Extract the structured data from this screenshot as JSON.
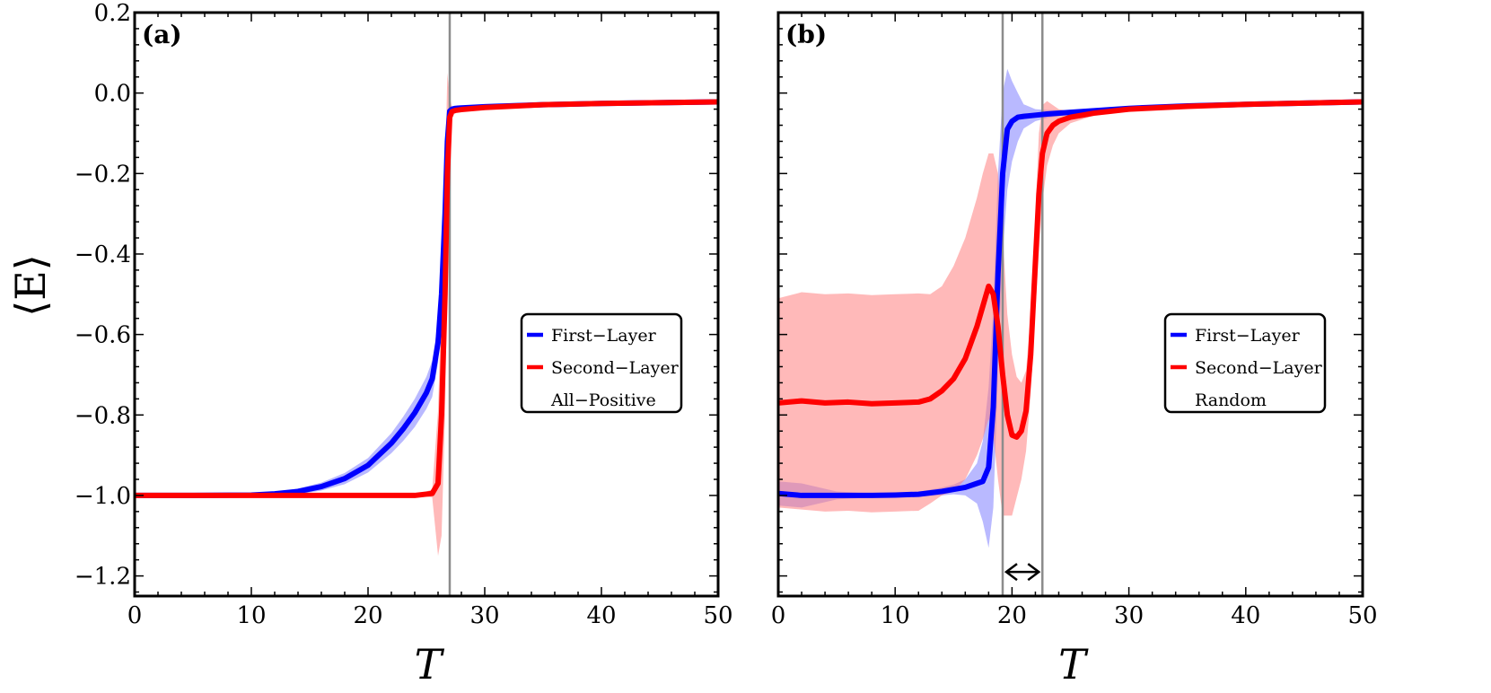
{
  "chart_data": [
    {
      "type": "line",
      "panel_label": "(a)",
      "xlabel": "T",
      "ylabel": "⟨E⟩",
      "xlim": [
        0,
        50
      ],
      "ylim": [
        -1.25,
        0.2
      ],
      "x_ticks": [
        0,
        10,
        20,
        30,
        40,
        50
      ],
      "y_ticks": [
        0.2,
        0.0,
        -0.2,
        -0.4,
        -0.6,
        -0.8,
        -1.0,
        -1.2
      ],
      "y_tick_labels": [
        "0.2",
        "0.0",
        "−0.2",
        "−0.4",
        "−0.6",
        "−0.8",
        "−1.0",
        "−1.2"
      ],
      "vlines": [
        27.0
      ],
      "legend": {
        "position": "right",
        "entries": [
          "First−Layer",
          "Second−Layer",
          "All−Positive"
        ]
      },
      "series": [
        {
          "name": "First−Layer",
          "color": "#0000ff",
          "band_color": "#8080ff",
          "x": [
            0,
            5,
            10,
            12,
            14,
            16,
            18,
            20,
            22,
            23,
            24,
            25,
            25.5,
            26,
            26.3,
            26.6,
            26.8,
            27.0,
            27.2,
            27.5,
            28,
            30,
            35,
            40,
            45,
            50
          ],
          "y": [
            -1.0,
            -1.0,
            -0.999,
            -0.996,
            -0.99,
            -0.978,
            -0.958,
            -0.925,
            -0.87,
            -0.835,
            -0.795,
            -0.745,
            -0.71,
            -0.62,
            -0.5,
            -0.3,
            -0.12,
            -0.045,
            -0.04,
            -0.038,
            -0.037,
            -0.034,
            -0.029,
            -0.026,
            -0.024,
            -0.022
          ],
          "err": [
            0,
            0,
            0.002,
            0.004,
            0.007,
            0.01,
            0.014,
            0.018,
            0.025,
            0.03,
            0.035,
            0.04,
            0.045,
            0.05,
            0.05,
            0.05,
            0.03,
            0.01,
            0.005,
            0.003,
            0.002,
            0.001,
            0.001,
            0.001,
            0.001,
            0.001
          ]
        },
        {
          "name": "Second−Layer",
          "color": "#ff0000",
          "band_color": "#ff8080",
          "x": [
            0,
            5,
            10,
            15,
            20,
            24,
            25.5,
            26.0,
            26.3,
            26.6,
            26.8,
            27.0,
            27.2,
            27.5,
            28,
            30,
            35,
            40,
            45,
            50
          ],
          "y": [
            -1.0,
            -1.0,
            -1.0,
            -1.0,
            -1.0,
            -1.0,
            -0.995,
            -0.97,
            -0.8,
            -0.5,
            -0.2,
            -0.06,
            -0.046,
            -0.043,
            -0.041,
            -0.036,
            -0.029,
            -0.026,
            -0.024,
            -0.022
          ],
          "err": [
            0,
            0,
            0,
            0,
            0,
            0,
            0.01,
            0.18,
            0.3,
            0.3,
            0.25,
            0.05,
            0.01,
            0.005,
            0.003,
            0.002,
            0.001,
            0.001,
            0.001,
            0.001
          ]
        }
      ]
    },
    {
      "type": "line",
      "panel_label": "(b)",
      "xlabel": "T",
      "xlim": [
        0,
        50
      ],
      "ylim": [
        -1.25,
        0.2
      ],
      "x_ticks": [
        0,
        10,
        20,
        30,
        40,
        50
      ],
      "vlines": [
        19.2,
        22.6
      ],
      "arrow": {
        "from": 19.2,
        "to": 22.6,
        "y": -1.19
      },
      "legend": {
        "position": "right",
        "entries": [
          "First−Layer",
          "Second−Layer",
          "Random"
        ]
      },
      "series": [
        {
          "name": "First−Layer",
          "color": "#0000ff",
          "band_color": "#8080ff",
          "x": [
            0,
            2,
            5,
            8,
            10,
            12,
            14,
            15,
            16,
            17,
            17.5,
            18,
            18.4,
            18.8,
            19.2,
            19.6,
            20,
            20.5,
            21,
            22,
            23,
            25,
            30,
            35,
            40,
            45,
            50
          ],
          "y": [
            -0.995,
            -1.0,
            -1.0,
            -1.0,
            -0.999,
            -0.997,
            -0.99,
            -0.985,
            -0.98,
            -0.97,
            -0.965,
            -0.93,
            -0.78,
            -0.45,
            -0.2,
            -0.09,
            -0.07,
            -0.06,
            -0.058,
            -0.055,
            -0.052,
            -0.048,
            -0.038,
            -0.032,
            -0.028,
            -0.025,
            -0.022
          ],
          "err": [
            0.03,
            0.03,
            0.01,
            0.005,
            0.005,
            0.006,
            0.01,
            0.012,
            0.02,
            0.05,
            0.1,
            0.2,
            0.25,
            0.25,
            0.2,
            0.15,
            0.1,
            0.06,
            0.03,
            0.015,
            0.01,
            0.005,
            0.002,
            0.001,
            0.001,
            0.001,
            0.001
          ]
        },
        {
          "name": "Second−Layer",
          "color": "#ff0000",
          "band_color": "#ff8080",
          "x": [
            0,
            2,
            4,
            6,
            8,
            10,
            12,
            13,
            14,
            15,
            16,
            17,
            17.5,
            18,
            18.4,
            18.8,
            19.2,
            19.6,
            20,
            20.4,
            20.8,
            21.2,
            21.6,
            22,
            22.3,
            22.6,
            23,
            23.5,
            24,
            25,
            27,
            30,
            35,
            40,
            45,
            50
          ],
          "y": [
            -0.77,
            -0.765,
            -0.77,
            -0.768,
            -0.772,
            -0.77,
            -0.768,
            -0.76,
            -0.74,
            -0.71,
            -0.66,
            -0.58,
            -0.53,
            -0.48,
            -0.5,
            -0.58,
            -0.7,
            -0.8,
            -0.85,
            -0.855,
            -0.84,
            -0.79,
            -0.65,
            -0.42,
            -0.25,
            -0.15,
            -0.1,
            -0.08,
            -0.07,
            -0.06,
            -0.05,
            -0.04,
            -0.033,
            -0.028,
            -0.025,
            -0.022
          ],
          "err": [
            0.26,
            0.27,
            0.27,
            0.27,
            0.27,
            0.27,
            0.27,
            0.26,
            0.26,
            0.28,
            0.3,
            0.32,
            0.33,
            0.33,
            0.35,
            0.38,
            0.35,
            0.25,
            0.2,
            0.15,
            0.12,
            0.1,
            0.1,
            0.12,
            0.15,
            0.12,
            0.08,
            0.05,
            0.03,
            0.015,
            0.006,
            0.003,
            0.002,
            0.001,
            0.001,
            0.001
          ]
        }
      ]
    }
  ]
}
